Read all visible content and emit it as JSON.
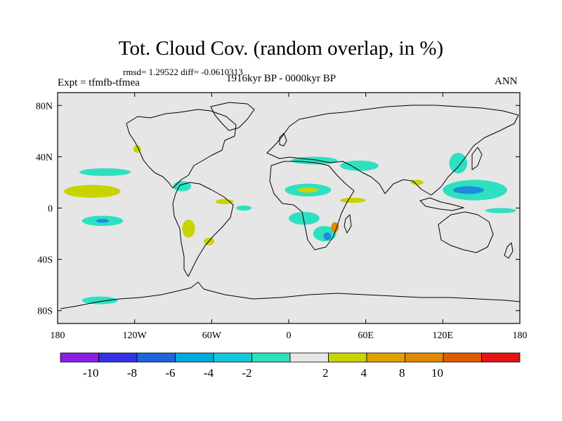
{
  "title": "Tot. Cloud Cov. (random overlap, in %)",
  "stats": "rmsd= 1.29522 diff= -0.0610313",
  "experiment": "Expt = tfmfb-tfmea",
  "period": "1916kyr BP - 0000kyr BP",
  "season": "ANN",
  "map": {
    "background_color": "#e6e6e6",
    "x_ticks": [
      {
        "lon": -180,
        "label": "180"
      },
      {
        "lon": -120,
        "label": "120W"
      },
      {
        "lon": -60,
        "label": "60W"
      },
      {
        "lon": 0,
        "label": "0"
      },
      {
        "lon": 60,
        "label": "60E"
      },
      {
        "lon": 120,
        "label": "120E"
      },
      {
        "lon": 180,
        "label": "180"
      }
    ],
    "y_ticks": [
      {
        "lat": 80,
        "label": "80N"
      },
      {
        "lat": 40,
        "label": "40N"
      },
      {
        "lat": 0,
        "label": "0"
      },
      {
        "lat": -40,
        "label": "40S"
      },
      {
        "lat": -80,
        "label": "80S"
      }
    ],
    "anomalies": [
      {
        "lon": -143,
        "lat": 28,
        "rlon": 20,
        "rlat": 3,
        "color": "#2ee0c0"
      },
      {
        "lon": -153,
        "lat": 13,
        "rlon": 22,
        "rlat": 5,
        "color": "#c8d400"
      },
      {
        "lon": -145,
        "lat": -10,
        "rlon": 16,
        "rlat": 4,
        "color": "#2ee0c0"
      },
      {
        "lon": -145,
        "lat": -10,
        "rlon": 5,
        "rlat": 1.5,
        "color": "#1c8cdc"
      },
      {
        "lon": -147,
        "lat": -72,
        "rlon": 14,
        "rlat": 3,
        "color": "#2ee0c0"
      },
      {
        "lon": -118,
        "lat": 46,
        "rlon": 3,
        "rlat": 3,
        "color": "#c8d400"
      },
      {
        "lon": -83,
        "lat": 17,
        "rlon": 7,
        "rlat": 4,
        "color": "#2ee0c0"
      },
      {
        "lon": -78,
        "lat": -16,
        "rlon": 5,
        "rlat": 7,
        "color": "#c8d400"
      },
      {
        "lon": -62,
        "lat": -26,
        "rlon": 4,
        "rlat": 3,
        "color": "#c8d400"
      },
      {
        "lon": -50,
        "lat": 5,
        "rlon": 7,
        "rlat": 2,
        "color": "#c8d400"
      },
      {
        "lon": -35,
        "lat": 0,
        "rlon": 6,
        "rlat": 2,
        "color": "#2ee0c0"
      },
      {
        "lon": 20,
        "lat": 37,
        "rlon": 18,
        "rlat": 3,
        "color": "#2ee0c0"
      },
      {
        "lon": 55,
        "lat": 33,
        "rlon": 15,
        "rlat": 4,
        "color": "#2ee0c0"
      },
      {
        "lon": 15,
        "lat": 14,
        "rlon": 18,
        "rlat": 5,
        "color": "#2ee0c0"
      },
      {
        "lon": 15,
        "lat": 14,
        "rlon": 8,
        "rlat": 2,
        "color": "#c8d400"
      },
      {
        "lon": 12,
        "lat": -8,
        "rlon": 12,
        "rlat": 5,
        "color": "#2ee0c0"
      },
      {
        "lon": 28,
        "lat": -20,
        "rlon": 9,
        "rlat": 6,
        "color": "#2ee0c0"
      },
      {
        "lon": 30,
        "lat": -22,
        "rlon": 3,
        "rlat": 3,
        "color": "#1c8cdc"
      },
      {
        "lon": 36,
        "lat": -15,
        "rlon": 3,
        "rlat": 4,
        "color": "#e08a00"
      },
      {
        "lon": 50,
        "lat": 6,
        "rlon": 10,
        "rlat": 2,
        "color": "#c8d400"
      },
      {
        "lon": 132,
        "lat": 35,
        "rlon": 7,
        "rlat": 8,
        "color": "#2ee0c0"
      },
      {
        "lon": 145,
        "lat": 14,
        "rlon": 25,
        "rlat": 8,
        "color": "#2ee0c0"
      },
      {
        "lon": 140,
        "lat": 14,
        "rlon": 12,
        "rlat": 3,
        "color": "#1c8cdc"
      },
      {
        "lon": 165,
        "lat": -2,
        "rlon": 12,
        "rlat": 2,
        "color": "#2ee0c0"
      },
      {
        "lon": 100,
        "lat": 20,
        "rlon": 5,
        "rlat": 2,
        "color": "#c8d400"
      }
    ]
  },
  "colorbar": {
    "colors": [
      "#8c1ee6",
      "#3232e6",
      "#1e64dc",
      "#00aadc",
      "#14c8dc",
      "#2ee0c0",
      "#e6e6e6",
      "#c8d400",
      "#e0a000",
      "#e08a00",
      "#e05a00",
      "#e61414"
    ],
    "labels": [
      "-10",
      "-8",
      "-6",
      "-4",
      "-2",
      "2",
      "4",
      "8",
      "10"
    ]
  }
}
